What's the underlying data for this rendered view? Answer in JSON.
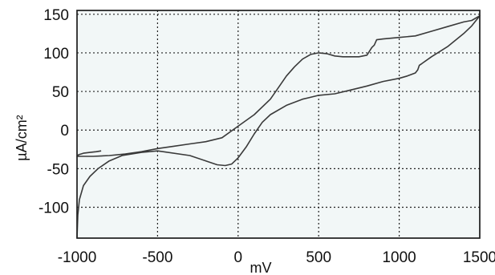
{
  "chart_data": {
    "type": "line",
    "title": "",
    "xlabel": "mV",
    "ylabel": "µA/cm²",
    "xlim": [
      -1000,
      1500
    ],
    "ylim": [
      -140,
      155
    ],
    "x_ticks": [
      -1000,
      -500,
      0,
      500,
      1000,
      1500
    ],
    "y_ticks": [
      -100,
      -50,
      0,
      50,
      100,
      150
    ],
    "x_tick_labels": [
      "-1000",
      "-500",
      "0",
      "500",
      "1000",
      "1500"
    ],
    "y_tick_labels": [
      "-100",
      "-50",
      "0",
      "50",
      "100",
      "150"
    ],
    "grid": true,
    "grid_style": "dotted",
    "background_color": "#f2f7f7",
    "line_color": "#3a3a3a",
    "series": [
      {
        "name": "",
        "points": [
          [
            -1000,
            -140
          ],
          [
            -995,
            -110
          ],
          [
            -985,
            -90
          ],
          [
            -960,
            -72
          ],
          [
            -920,
            -60
          ],
          [
            -870,
            -50
          ],
          [
            -800,
            -40
          ],
          [
            -720,
            -33
          ],
          [
            -600,
            -29
          ],
          [
            -500,
            -27
          ],
          [
            -300,
            -33
          ],
          [
            -200,
            -40
          ],
          [
            -130,
            -45
          ],
          [
            -80,
            -46
          ],
          [
            -40,
            -44
          ],
          [
            0,
            -36
          ],
          [
            50,
            -22
          ],
          [
            100,
            -5
          ],
          [
            150,
            10
          ],
          [
            200,
            20
          ],
          [
            300,
            32
          ],
          [
            400,
            40
          ],
          [
            500,
            45
          ],
          [
            600,
            47
          ],
          [
            700,
            52
          ],
          [
            800,
            57
          ],
          [
            900,
            63
          ],
          [
            1000,
            67
          ],
          [
            1050,
            70
          ],
          [
            1100,
            74
          ],
          [
            1115,
            78
          ],
          [
            1125,
            84
          ],
          [
            1140,
            86
          ],
          [
            1200,
            95
          ],
          [
            1300,
            108
          ],
          [
            1400,
            125
          ],
          [
            1450,
            135
          ],
          [
            1500,
            148
          ],
          [
            1450,
            142
          ],
          [
            1400,
            140
          ],
          [
            1300,
            134
          ],
          [
            1200,
            128
          ],
          [
            1100,
            122
          ],
          [
            1000,
            120
          ],
          [
            900,
            118
          ],
          [
            860,
            117
          ],
          [
            845,
            110
          ],
          [
            830,
            107
          ],
          [
            800,
            97
          ],
          [
            750,
            95
          ],
          [
            700,
            95
          ],
          [
            650,
            95
          ],
          [
            600,
            96
          ],
          [
            550,
            99
          ],
          [
            500,
            100
          ],
          [
            450,
            98
          ],
          [
            400,
            92
          ],
          [
            350,
            82
          ],
          [
            300,
            70
          ],
          [
            250,
            55
          ],
          [
            200,
            40
          ],
          [
            100,
            20
          ],
          [
            0,
            5
          ],
          [
            -100,
            -10
          ],
          [
            -200,
            -15
          ],
          [
            -300,
            -18
          ],
          [
            -400,
            -21
          ],
          [
            -500,
            -24
          ],
          [
            -600,
            -28
          ],
          [
            -700,
            -31
          ],
          [
            -800,
            -33
          ],
          [
            -900,
            -34
          ],
          [
            -950,
            -34
          ],
          [
            -980,
            -34
          ],
          [
            -1000,
            -34
          ],
          [
            -990,
            -32
          ],
          [
            -960,
            -30
          ],
          [
            -920,
            -29
          ],
          [
            -880,
            -28
          ],
          [
            -850,
            -27
          ]
        ]
      }
    ]
  }
}
